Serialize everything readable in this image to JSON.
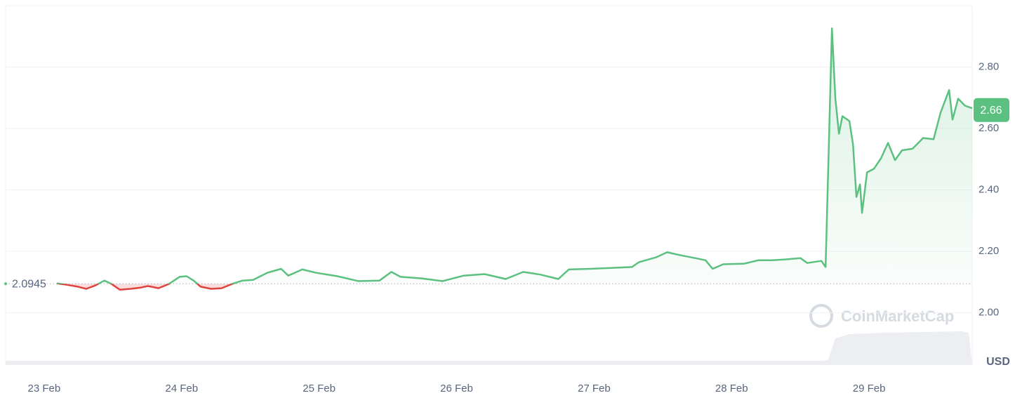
{
  "chart_data": {
    "type": "line",
    "x": [
      0.092,
      0.168,
      0.245,
      0.306,
      0.372,
      0.439,
      0.49,
      0.551,
      0.628,
      0.704,
      0.755,
      0.832,
      0.908,
      0.985,
      1.036,
      1.087,
      1.138,
      1.214,
      1.291,
      1.367,
      1.444,
      1.52,
      1.622,
      1.724,
      1.776,
      1.878,
      1.98,
      2.133,
      2.286,
      2.439,
      2.526,
      2.592,
      2.745,
      2.898,
      3.051,
      3.204,
      3.357,
      3.485,
      3.612,
      3.74,
      3.816,
      3.969,
      4.122,
      4.276,
      4.327,
      4.454,
      4.531,
      4.633,
      4.735,
      4.811,
      4.862,
      4.939,
      5.092,
      5.194,
      5.296,
      5.398,
      5.5,
      5.551,
      5.653,
      5.684,
      5.73,
      5.755,
      5.781,
      5.806,
      5.857,
      5.883,
      5.908,
      5.934,
      5.949,
      5.985,
      6.036,
      6.087,
      6.138,
      6.189,
      6.24,
      6.316,
      6.393,
      6.469,
      6.52,
      6.582,
      6.607,
      6.648,
      6.699,
      6.75
    ],
    "values": [
      2.096,
      2.091,
      2.085,
      2.078,
      2.089,
      2.105,
      2.094,
      2.075,
      2.078,
      2.082,
      2.087,
      2.08,
      2.094,
      2.117,
      2.119,
      2.105,
      2.085,
      2.078,
      2.08,
      2.094,
      2.105,
      2.107,
      2.13,
      2.143,
      2.121,
      2.141,
      2.13,
      2.119,
      2.103,
      2.105,
      2.133,
      2.117,
      2.112,
      2.103,
      2.121,
      2.126,
      2.11,
      2.133,
      2.124,
      2.11,
      2.141,
      2.143,
      2.146,
      2.149,
      2.165,
      2.181,
      2.197,
      2.187,
      2.178,
      2.171,
      2.143,
      2.158,
      2.16,
      2.171,
      2.171,
      2.174,
      2.178,
      2.162,
      2.169,
      2.149,
      2.926,
      2.697,
      2.583,
      2.64,
      2.624,
      2.549,
      2.377,
      2.418,
      2.325,
      2.457,
      2.469,
      2.503,
      2.553,
      2.497,
      2.529,
      2.534,
      2.569,
      2.565,
      2.651,
      2.725,
      2.629,
      2.697,
      2.674,
      2.666
    ],
    "xlim": [
      -0.28,
      6.75
    ],
    "xticks": [
      {
        "value": 0,
        "label": "23 Feb"
      },
      {
        "value": 1,
        "label": "24 Feb"
      },
      {
        "value": 2,
        "label": "25 Feb"
      },
      {
        "value": 3,
        "label": "26 Feb"
      },
      {
        "value": 4,
        "label": "27 Feb"
      },
      {
        "value": 5,
        "label": "28 Feb"
      },
      {
        "value": 6,
        "label": "29 Feb"
      }
    ],
    "ylim": [
      1.83,
      3.0
    ],
    "yticks": [
      {
        "value": 2,
        "label": "2.00"
      },
      {
        "value": 2.2,
        "label": "2.20"
      },
      {
        "value": 2.4,
        "label": "2.40"
      },
      {
        "value": 2.6,
        "label": "2.60"
      },
      {
        "value": 2.8,
        "label": "2.80"
      }
    ],
    "baseline": 2.0945,
    "last_value": 2.66,
    "y_unit": "USD",
    "watermark": "CoinMarketCap",
    "grid": true,
    "color_up": "#5cc080",
    "color_down": "#e0433e"
  }
}
